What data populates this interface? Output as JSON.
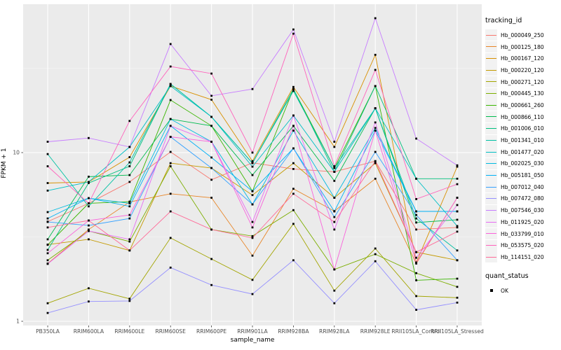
{
  "chart_data": {
    "type": "line",
    "title": "",
    "xlabel": "sample_name",
    "ylabel": "FPKM + 1",
    "y_scale": "log10",
    "y_major_ticks": [
      1,
      10
    ],
    "y_minor_breaks": [
      3.1623,
      31.623
    ],
    "ylim": [
      0.94,
      75
    ],
    "grid": "on",
    "legend_position": "right",
    "point_shape": "filled-square",
    "point_color": "#000000",
    "categories": [
      "PB350LA",
      "RRIM600LA",
      "RRIM600LE",
      "RRIM600SE",
      "RRIM600PE",
      "RRIM901LA",
      "RRIM928BA",
      "RRIM928LA",
      "RRIM928LE",
      "RRII105LA_Control",
      "RRII105LA_Stressed"
    ],
    "series": [
      {
        "name": "Hb_000049_250",
        "color": "#F8766D",
        "values": [
          3.9,
          5.0,
          6.7,
          10.1,
          6.9,
          8.7,
          8.0,
          7.7,
          8.9,
          3.5,
          3.6
        ]
      },
      {
        "name": "Hb_000125_180",
        "color": "#E88526",
        "values": [
          2.2,
          3.5,
          5.1,
          5.7,
          5.4,
          2.45,
          6.1,
          4.5,
          7.0,
          2.2,
          5.4
        ]
      },
      {
        "name": "Hb_000167_120",
        "color": "#D89000",
        "values": [
          6.6,
          6.7,
          9.4,
          24.8,
          20.6,
          8.9,
          24.5,
          10.8,
          38.0,
          2.23,
          8.25
        ]
      },
      {
        "name": "Hb_000220_120",
        "color": "#C49A00",
        "values": [
          2.85,
          3.06,
          2.63,
          8.66,
          8.1,
          5.6,
          8.66,
          5.4,
          8.66,
          2.57,
          2.3
        ]
      },
      {
        "name": "Hb_000271_120",
        "color": "#A3A500",
        "values": [
          1.28,
          1.57,
          1.36,
          3.12,
          2.34,
          1.76,
          3.78,
          1.52,
          2.7,
          1.41,
          1.38
        ]
      },
      {
        "name": "Hb_000445_130",
        "color": "#7CAE00",
        "values": [
          2.3,
          3.43,
          2.97,
          8.3,
          3.5,
          3.2,
          4.56,
          2.03,
          2.5,
          1.93,
          1.6
        ]
      },
      {
        "name": "Hb_000661_260",
        "color": "#39B600",
        "values": [
          2.84,
          5.0,
          5.12,
          20.5,
          14.4,
          5.9,
          23.8,
          8.1,
          24.8,
          1.75,
          1.79
        ]
      },
      {
        "name": "Hb_000866_110",
        "color": "#00BB4E",
        "values": [
          3.06,
          7.2,
          7.36,
          15.8,
          14.4,
          7.36,
          14.4,
          6.8,
          18.3,
          3.85,
          4.0
        ]
      },
      {
        "name": "Hb_001006_010",
        "color": "#00BF7D",
        "values": [
          2.65,
          6.6,
          8.3,
          25.5,
          16.3,
          8.66,
          23.8,
          7.7,
          24.8,
          7.0,
          7.0
        ]
      },
      {
        "name": "Hb_001341_010",
        "color": "#00C1A3",
        "values": [
          9.8,
          4.8,
          8.75,
          25.5,
          16.3,
          8.66,
          23.2,
          8.1,
          18.3,
          4.07,
          2.63
        ]
      },
      {
        "name": "Hb_001477_020",
        "color": "#00BFC4",
        "values": [
          5.95,
          6.7,
          10.8,
          24.8,
          16.3,
          8.25,
          16.6,
          7.7,
          18.3,
          7.0,
          3.67
        ]
      },
      {
        "name": "Hb_002025_030",
        "color": "#00BAE0",
        "values": [
          4.44,
          5.37,
          5.0,
          15.8,
          11.6,
          4.93,
          13.5,
          5.4,
          14.0,
          4.48,
          4.48
        ]
      },
      {
        "name": "Hb_005181_050",
        "color": "#00B0F6",
        "values": [
          4.07,
          5.37,
          4.8,
          14.4,
          9.35,
          5.9,
          10.6,
          4.48,
          13.5,
          4.48,
          4.48
        ]
      },
      {
        "name": "Hb_007012_040",
        "color": "#35A2FF",
        "values": [
          3.88,
          3.7,
          4.07,
          12.4,
          8.1,
          4.93,
          10.6,
          4.15,
          10.1,
          4.27,
          2.3
        ]
      },
      {
        "name": "Hb_007472_080",
        "color": "#9590FF",
        "values": [
          1.12,
          1.31,
          1.32,
          2.08,
          1.64,
          1.45,
          2.3,
          1.28,
          2.27,
          1.17,
          1.29
        ]
      },
      {
        "name": "Hb_007546_030",
        "color": "#C77CFF",
        "values": [
          11.6,
          12.2,
          10.8,
          44.0,
          21.7,
          23.8,
          53.7,
          11.6,
          62.6,
          12.1,
          8.4
        ]
      },
      {
        "name": "Hb_011925_020",
        "color": "#E76BF3",
        "values": [
          2.19,
          3.43,
          3.06,
          14.4,
          11.6,
          3.88,
          16.6,
          3.5,
          15.1,
          2.38,
          4.89
        ]
      },
      {
        "name": "Hb_033799_010",
        "color": "#FA62DB",
        "values": [
          2.53,
          3.96,
          4.27,
          12.4,
          11.6,
          3.6,
          14.4,
          2.03,
          13.5,
          2.23,
          5.4
        ]
      },
      {
        "name": "Hb_053575_020",
        "color": "#FF62BC",
        "values": [
          8.3,
          5.0,
          15.4,
          32.4,
          29.4,
          10.0,
          50.7,
          8.3,
          30.9,
          5.3,
          6.5
        ]
      },
      {
        "name": "Hb_114151_020",
        "color": "#FF6A98",
        "values": [
          3.6,
          3.96,
          2.63,
          4.48,
          3.5,
          3.12,
          5.7,
          3.88,
          8.9,
          2.57,
          3.4
        ]
      }
    ]
  },
  "legend": {
    "tracking_title": "tracking_id",
    "quant_title": "quant_status",
    "quant_items": [
      {
        "label": "OK"
      }
    ]
  },
  "style": {
    "panel_bg": "#EBEBEB",
    "grid_major": "#FFFFFF",
    "grid_minor": "#F5F5F5",
    "tick_label_color": "#4D4D4D",
    "tick_color": "#333333",
    "legend_key_bg": "#F2F2F2"
  }
}
